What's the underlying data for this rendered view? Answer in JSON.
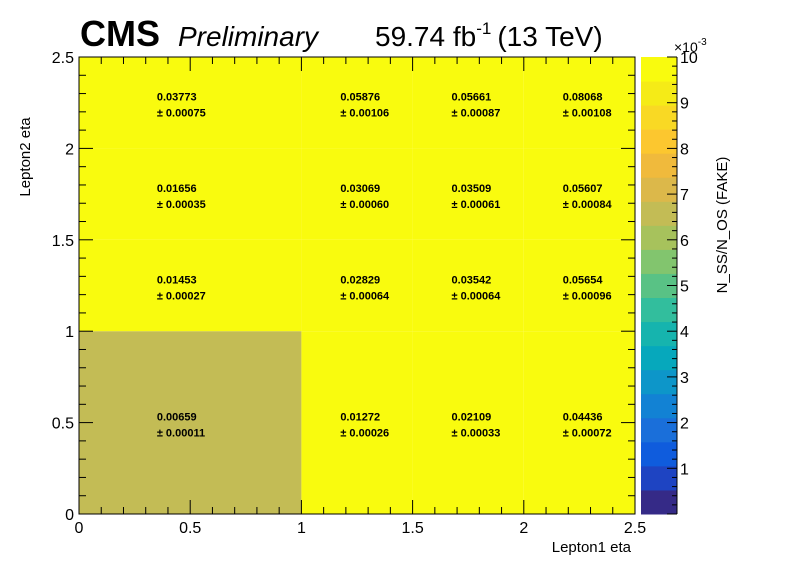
{
  "header": {
    "experiment": "CMS",
    "status": "Preliminary",
    "lumi_value": "59.74 fb",
    "lumi_exp": "-1",
    "energy": "(13 TeV)"
  },
  "chart_data": {
    "type": "heatmap",
    "xlabel": "Lepton1 eta",
    "ylabel": "Lepton2 eta",
    "zlabel": "N_SS/N_OS (FAKE)",
    "z_multiplier_label": "×10",
    "z_multiplier_exp": "-3",
    "xlim": [
      0,
      2.5
    ],
    "ylim": [
      0,
      2.5
    ],
    "zlim": [
      0,
      0.01
    ],
    "x_bin_edges": [
      0,
      1,
      1.5,
      2,
      2.5
    ],
    "y_bin_edges": [
      0,
      1,
      1.5,
      2,
      2.5
    ],
    "x_ticks": [
      "0",
      "0.5",
      "1",
      "1.5",
      "2",
      "2.5"
    ],
    "y_ticks": [
      "0",
      "0.5",
      "1",
      "1.5",
      "2",
      "2.5"
    ],
    "z_ticks": [
      "1",
      "2",
      "3",
      "4",
      "5",
      "6",
      "7",
      "8",
      "9",
      "10"
    ],
    "cells": [
      {
        "ix": 0,
        "iy": 0,
        "value": "0.00659",
        "error": "± 0.00011"
      },
      {
        "ix": 1,
        "iy": 0,
        "value": "0.01272",
        "error": "± 0.00026"
      },
      {
        "ix": 2,
        "iy": 0,
        "value": "0.02109",
        "error": "± 0.00033"
      },
      {
        "ix": 3,
        "iy": 0,
        "value": "0.04436",
        "error": "± 0.00072"
      },
      {
        "ix": 0,
        "iy": 1,
        "value": "0.01453",
        "error": "± 0.00027"
      },
      {
        "ix": 1,
        "iy": 1,
        "value": "0.02829",
        "error": "± 0.00064"
      },
      {
        "ix": 2,
        "iy": 1,
        "value": "0.03542",
        "error": "± 0.00064"
      },
      {
        "ix": 3,
        "iy": 1,
        "value": "0.05654",
        "error": "± 0.00096"
      },
      {
        "ix": 0,
        "iy": 2,
        "value": "0.01656",
        "error": "± 0.00035"
      },
      {
        "ix": 1,
        "iy": 2,
        "value": "0.03069",
        "error": "± 0.00060"
      },
      {
        "ix": 2,
        "iy": 2,
        "value": "0.03509",
        "error": "± 0.00061"
      },
      {
        "ix": 3,
        "iy": 2,
        "value": "0.05607",
        "error": "± 0.00084"
      },
      {
        "ix": 0,
        "iy": 3,
        "value": "0.03773",
        "error": "± 0.00075"
      },
      {
        "ix": 1,
        "iy": 3,
        "value": "0.05876",
        "error": "± 0.00106"
      },
      {
        "ix": 2,
        "iy": 3,
        "value": "0.05661",
        "error": "± 0.00087"
      },
      {
        "ix": 3,
        "iy": 3,
        "value": "0.08068",
        "error": "± 0.00108"
      }
    ],
    "palette": [
      "#352a87",
      "#1e44c2",
      "#0f5cdd",
      "#1a6fda",
      "#1282d4",
      "#0d96c9",
      "#06a8bc",
      "#16b4ae",
      "#32be9d",
      "#59c285",
      "#82c56e",
      "#a7c25c",
      "#c3bc55",
      "#dcb84a",
      "#f0ba3c",
      "#fcc72f",
      "#f9d924",
      "#f5eb17",
      "#f9fb0e"
    ],
    "overflow_color": "#f9fb0e"
  }
}
